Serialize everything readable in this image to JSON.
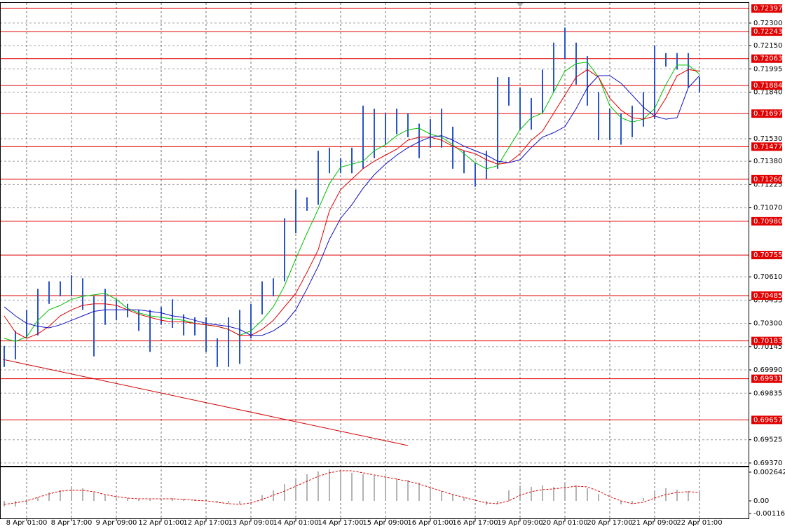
{
  "chart_data": [
    {
      "type": "hilo",
      "categories": [
        null,
        null,
        "8 Apr 01:00",
        null,
        null,
        null,
        "8 Apr 17:00",
        null,
        null,
        null,
        "9 Apr 09:00",
        null,
        null,
        null,
        "12 Apr 01:00",
        null,
        null,
        null,
        "12 Apr 17:00",
        null,
        null,
        null,
        "13 Apr 09:00",
        null,
        null,
        null,
        "14 Apr 01:00",
        null,
        null,
        null,
        "14 Apr 17:00",
        null,
        null,
        null,
        "15 Apr 09:00",
        null,
        null,
        null,
        "16 Apr 01:00",
        null,
        null,
        null,
        "16 Apr 17:00",
        null,
        null,
        null,
        "19 Apr 09:00",
        null,
        null,
        null,
        "20 Apr 01:00",
        null,
        null,
        null,
        "20 Apr 17:00",
        null,
        null,
        null,
        "21 Apr 09:00",
        null,
        null,
        null,
        "22 Apr 01:00"
      ],
      "high": [
        0.7015,
        0.7025,
        0.7039,
        0.7053,
        0.7058,
        0.7058,
        0.7062,
        0.706,
        0.7048,
        0.7053,
        0.7046,
        0.7043,
        0.7039,
        0.7039,
        0.7041,
        0.7046,
        0.7036,
        0.7034,
        0.7034,
        0.702,
        0.7034,
        0.7039,
        0.7043,
        0.7058,
        0.706,
        0.71,
        0.7119,
        0.7114,
        0.7145,
        0.7147,
        0.714,
        0.7147,
        0.7175,
        0.7173,
        0.717,
        0.7173,
        0.717,
        0.7163,
        0.7166,
        0.7173,
        0.7161,
        0.7145,
        0.7137,
        0.7145,
        0.7194,
        0.7194,
        0.7187,
        0.718,
        0.7199,
        0.7217,
        0.7227,
        0.7217,
        0.7208,
        0.7184,
        0.7173,
        0.717,
        0.7175,
        0.7184,
        0.7215,
        0.721,
        0.721,
        0.721,
        0.7194
      ],
      "low": [
        0.7001,
        0.7006,
        0.702,
        0.7022,
        0.7043,
        0.7048,
        0.7048,
        0.7039,
        0.7008,
        0.7029,
        0.7032,
        0.7034,
        0.7025,
        0.7011,
        0.7029,
        0.7027,
        0.7022,
        0.7022,
        0.7011,
        0.7001,
        0.7001,
        0.7003,
        0.702,
        0.7036,
        0.7048,
        0.7058,
        0.709,
        0.7105,
        0.7109,
        0.713,
        0.713,
        0.713,
        0.7133,
        0.714,
        0.7149,
        0.7156,
        0.7154,
        0.714,
        0.7147,
        0.7147,
        0.7133,
        0.713,
        0.7121,
        0.7126,
        0.7133,
        0.7175,
        0.7159,
        0.7159,
        0.717,
        0.7184,
        0.7206,
        0.7189,
        0.7175,
        0.7152,
        0.7152,
        0.7149,
        0.7154,
        0.7161,
        0.7166,
        0.7201,
        0.7199,
        0.7187,
        0.7184
      ],
      "color": "#2a55c8",
      "lines": [
        {
          "color": "#00c000",
          "values": [
            0.702,
            0.7018,
            0.7021,
            0.7032,
            0.7039,
            0.7042,
            0.7046,
            0.7048,
            0.7049,
            0.705,
            0.7046,
            0.704,
            0.7037,
            0.7035,
            0.7034,
            0.7033,
            0.7032,
            0.703,
            0.7029,
            0.7028,
            0.7026,
            0.7022,
            0.7025,
            0.7032,
            0.7041,
            0.7055,
            0.7073,
            0.709,
            0.7106,
            0.7123,
            0.7134,
            0.7136,
            0.7138,
            0.7145,
            0.7149,
            0.7155,
            0.7159,
            0.716,
            0.7156,
            0.7154,
            0.7149,
            0.7143,
            0.7137,
            0.7133,
            0.7135,
            0.7147,
            0.7159,
            0.7167,
            0.717,
            0.7184,
            0.7198,
            0.7203,
            0.7204,
            0.7194,
            0.7175,
            0.7167,
            0.7164,
            0.7166,
            0.7173,
            0.7189,
            0.7202,
            0.7202,
            0.7196
          ]
        },
        {
          "color": "#e00000",
          "values": [
            0.7035,
            0.7024,
            0.702,
            0.7023,
            0.7028,
            0.7035,
            0.7039,
            0.7042,
            0.7043,
            0.7043,
            0.7042,
            0.7039,
            0.7036,
            0.7034,
            0.7032,
            0.7031,
            0.7031,
            0.703,
            0.7029,
            0.7028,
            0.7026,
            0.7022,
            0.7022,
            0.7026,
            0.7032,
            0.7041,
            0.705,
            0.7064,
            0.7079,
            0.7105,
            0.7119,
            0.7126,
            0.7133,
            0.7138,
            0.7142,
            0.7146,
            0.7152,
            0.7154,
            0.7154,
            0.7152,
            0.7148,
            0.7145,
            0.7143,
            0.7139,
            0.7136,
            0.7137,
            0.7143,
            0.7152,
            0.7158,
            0.717,
            0.7182,
            0.7194,
            0.7199,
            0.7194,
            0.718,
            0.7172,
            0.7167,
            0.7166,
            0.7168,
            0.718,
            0.7195,
            0.7199,
            0.7198
          ]
        },
        {
          "color": "#1010c0",
          "values": [
            0.7041,
            0.7035,
            0.703,
            0.7028,
            0.7027,
            0.7029,
            0.7032,
            0.7035,
            0.7038,
            0.7039,
            0.7039,
            0.7039,
            0.7039,
            0.7038,
            0.7037,
            0.7035,
            0.7034,
            0.7032,
            0.703,
            0.7029,
            0.7028,
            0.7026,
            0.7022,
            0.7022,
            0.7025,
            0.703,
            0.7039,
            0.7053,
            0.7068,
            0.7086,
            0.71,
            0.7109,
            0.712,
            0.7129,
            0.7136,
            0.7142,
            0.7147,
            0.7151,
            0.7154,
            0.7155,
            0.7152,
            0.7148,
            0.7145,
            0.7142,
            0.7138,
            0.7137,
            0.7139,
            0.7147,
            0.7154,
            0.7157,
            0.7161,
            0.7173,
            0.7187,
            0.7195,
            0.7195,
            0.719,
            0.7182,
            0.7174,
            0.7168,
            0.7166,
            0.7167,
            0.7187,
            0.7195
          ]
        }
      ],
      "ylim": [
        0.69351,
        0.72435
      ],
      "yticks": [
        {
          "value": 0.723,
          "label": "0.72300"
        },
        {
          "value": 0.7215,
          "label": "0.72150"
        },
        0.71995,
        {
          "value": 0.7184,
          "label": "0.71840"
        },
        {
          "value": 0.7153,
          "label": "0.71530"
        },
        {
          "value": 0.7138,
          "label": "0.71380"
        },
        0.71225,
        {
          "value": 0.7107,
          "label": "0.71070"
        },
        {
          "value": 0.7061,
          "label": "0.70610"
        },
        0.70455,
        {
          "value": 0.703,
          "label": "0.70300"
        },
        0.70145,
        {
          "value": 0.6999,
          "label": "0.69990"
        },
        0.69835,
        0.69525,
        {
          "value": 0.6937,
          "label": "0.69370"
        }
      ],
      "levels": [
        0.72397,
        0.72243,
        0.72063,
        0.71884,
        0.71697,
        0.71477,
        {
          "value": 0.7126,
          "label": "0.71260"
        },
        {
          "value": 0.7098,
          "label": "0.70980"
        },
        0.70755,
        0.70485,
        0.70183,
        0.69931,
        0.69657
      ],
      "level_color": "#e00000",
      "grid": true
    },
    {
      "type": "oscillator",
      "values": [
        -0.00052,
        -0.00052,
        -0.00038,
        0.00032,
        0.00077,
        0.00097,
        0.00116,
        0.00116,
        0.00077,
        0.00052,
        0.00032,
        0.00026,
        0.00019,
        0.00013,
        0.00019,
        0.00026,
        0.00019,
        0.00013,
        6e-05,
        -0.00013,
        -0.00026,
        -0.00032,
        0,
        0.00052,
        0.00097,
        0.00155,
        0.00206,
        0.00245,
        0.00271,
        0.0029,
        0.00283,
        0.00258,
        0.00245,
        0.00232,
        0.00219,
        0.00206,
        0.00193,
        0.00167,
        0.00129,
        0.0009,
        0.00064,
        0.00032,
        0,
        -0.00038,
        -0.00032,
        0.00097,
        0.00142,
        0.00129,
        0.00142,
        0.00129,
        0.00155,
        0.00142,
        0.00116,
        0.00064,
        0,
        -0.00032,
        -0.00026,
        0.00026,
        0.00077,
        0.00116,
        0.00103,
        0.0009,
        0.00077
      ],
      "color": "#b4b4b4",
      "signal": {
        "color": "#e00000",
        "values": [
          -0.00032,
          -0.00019,
          0,
          0.00032,
          0.00064,
          0.0009,
          0.00097,
          0.00097,
          0.00084,
          0.00058,
          0.00039,
          0.00026,
          0.00019,
          0.00019,
          0.00019,
          0.00019,
          0.00013,
          6e-05,
          0,
          -0.00013,
          -0.00026,
          -0.00032,
          -0.00019,
          0.00013,
          0.00052,
          0.0009,
          0.00135,
          0.0018,
          0.00225,
          0.00258,
          0.00277,
          0.00277,
          0.00258,
          0.00238,
          0.00219,
          0.002,
          0.0018,
          0.00155,
          0.00122,
          0.0009,
          0.00058,
          0.00032,
          6e-05,
          -0.00019,
          -0.00026,
          0,
          0.00052,
          0.00084,
          0.00103,
          0.0011,
          0.00122,
          0.00135,
          0.00129,
          0.0009,
          0.00039,
          0,
          -0.00026,
          -0.00013,
          0.00026,
          0.00058,
          0.00077,
          0.00084,
          0.00077
        ]
      },
      "ylim": [
        -0.00161,
        0.00309
      ],
      "yticks": [
        0.002642,
        {
          "value": 0,
          "label": "0.00"
        },
        -0.001166
      ]
    }
  ]
}
